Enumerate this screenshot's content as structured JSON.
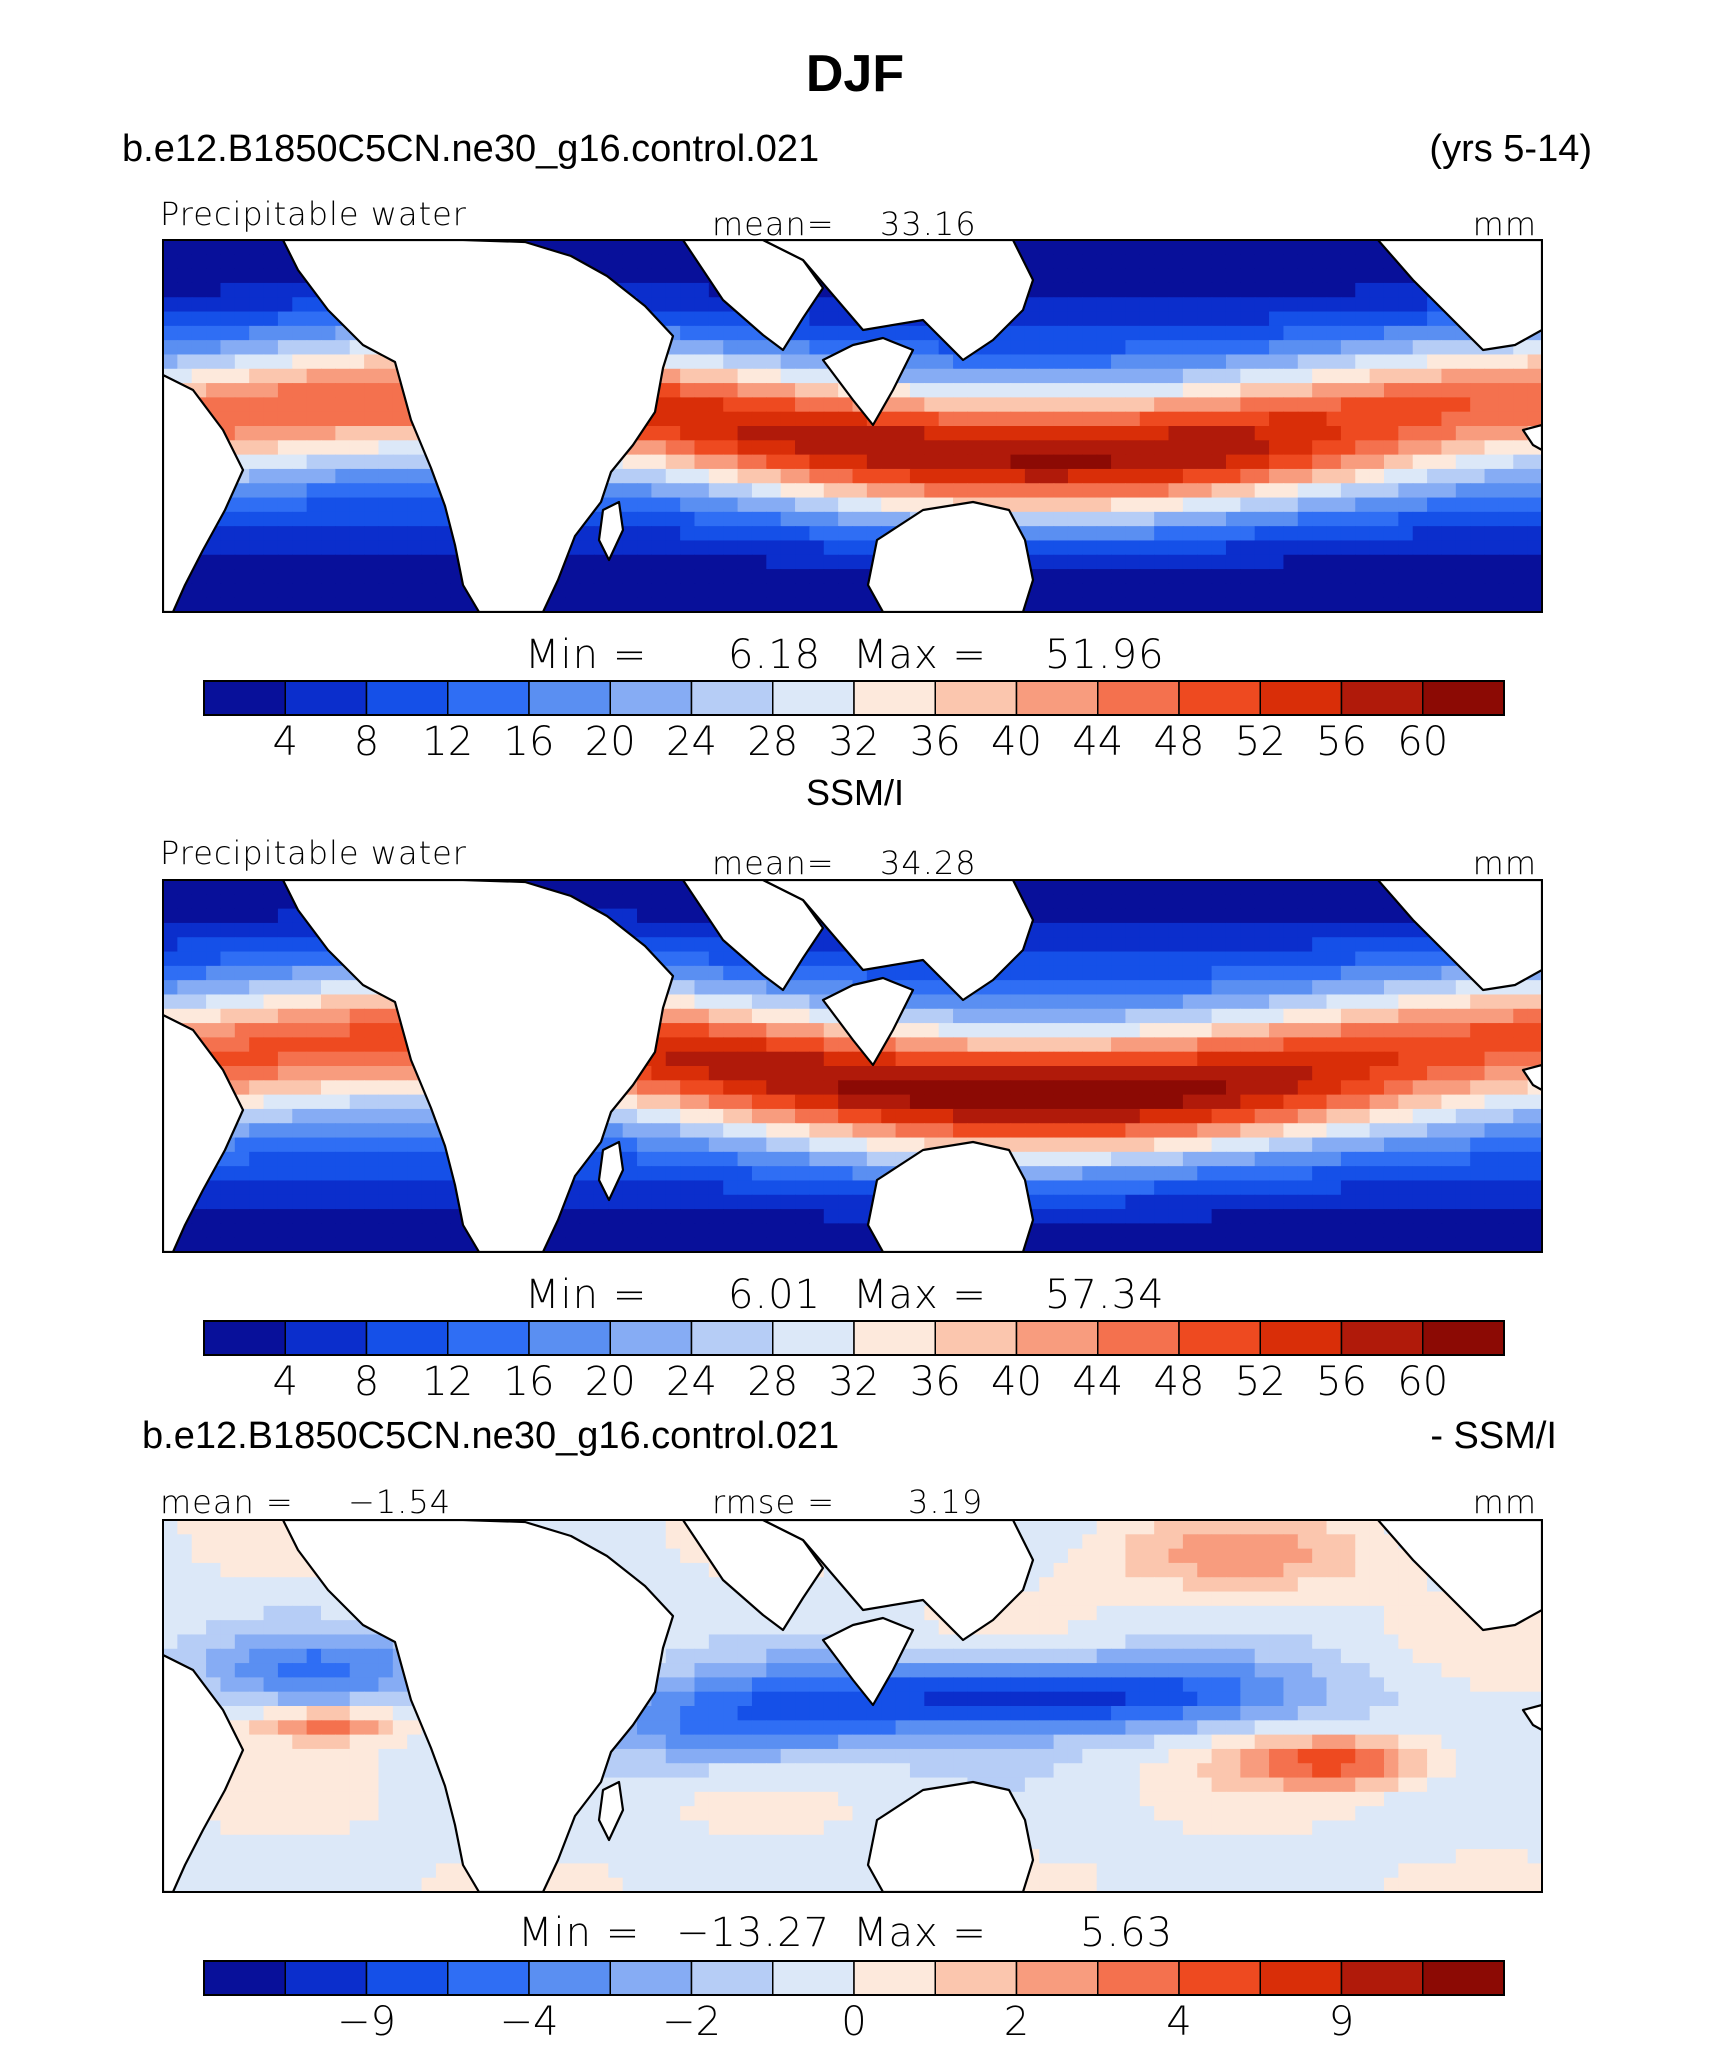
{
  "main_title": "DJF",
  "model_name": "b.e12.B1850C5CN.ne30_g16.control.021",
  "years": "(yrs 5-14)",
  "panel2_title": "SSM/I",
  "panel3_title_left": "b.e12.B1850C5CN.ne30_g16.control.021",
  "panel3_title_right": "- SSM/I",
  "colors": {
    "palette": [
      "#08109a",
      "#0b2ecc",
      "#1550e8",
      "#2f6ef4",
      "#5a8ff2",
      "#86acf4",
      "#b6cdf6",
      "#dce8f8",
      "#fde9dc",
      "#fbc6ae",
      "#f89c7e",
      "#f4714e",
      "#ee4a20",
      "#d92e08",
      "#b01a0a",
      "#8c0a04"
    ],
    "land": "#ffffff",
    "coast": "#000000"
  },
  "chart_data": [
    {
      "type": "heatmap",
      "name": "model",
      "field_label": "Precipitable water",
      "mean_label": "mean=",
      "mean_value": "33.16",
      "units": "mm",
      "min_label": "Min  =",
      "min_value": "6.18",
      "max_label": "Max  =",
      "max_value": "51.96",
      "colorbar_ticks": [
        "4",
        "8",
        "12",
        "16",
        "20",
        "24",
        "28",
        "32",
        "36",
        "40",
        "44",
        "48",
        "52",
        "56",
        "60"
      ]
    },
    {
      "type": "heatmap",
      "name": "observation",
      "field_label": "Precipitable water",
      "mean_label": "mean=",
      "mean_value": "34.28",
      "units": "mm",
      "min_label": "Min  =",
      "min_value": "6.01",
      "max_label": "Max  =",
      "max_value": "57.34",
      "colorbar_ticks": [
        "4",
        "8",
        "12",
        "16",
        "20",
        "24",
        "28",
        "32",
        "36",
        "40",
        "44",
        "48",
        "52",
        "56",
        "60"
      ]
    },
    {
      "type": "heatmap",
      "name": "difference",
      "mean_label": "mean =",
      "mean_value": "−1.54",
      "rmse_label": "rmse =",
      "rmse_value": "3.19",
      "units": "mm",
      "min_label": "Min  =",
      "min_value": "−13.27",
      "max_label": "Max  =",
      "max_value": "5.63",
      "colorbar_ticks": [
        "−9",
        "−4",
        "−2",
        "0",
        "2",
        "4",
        "9"
      ]
    }
  ]
}
